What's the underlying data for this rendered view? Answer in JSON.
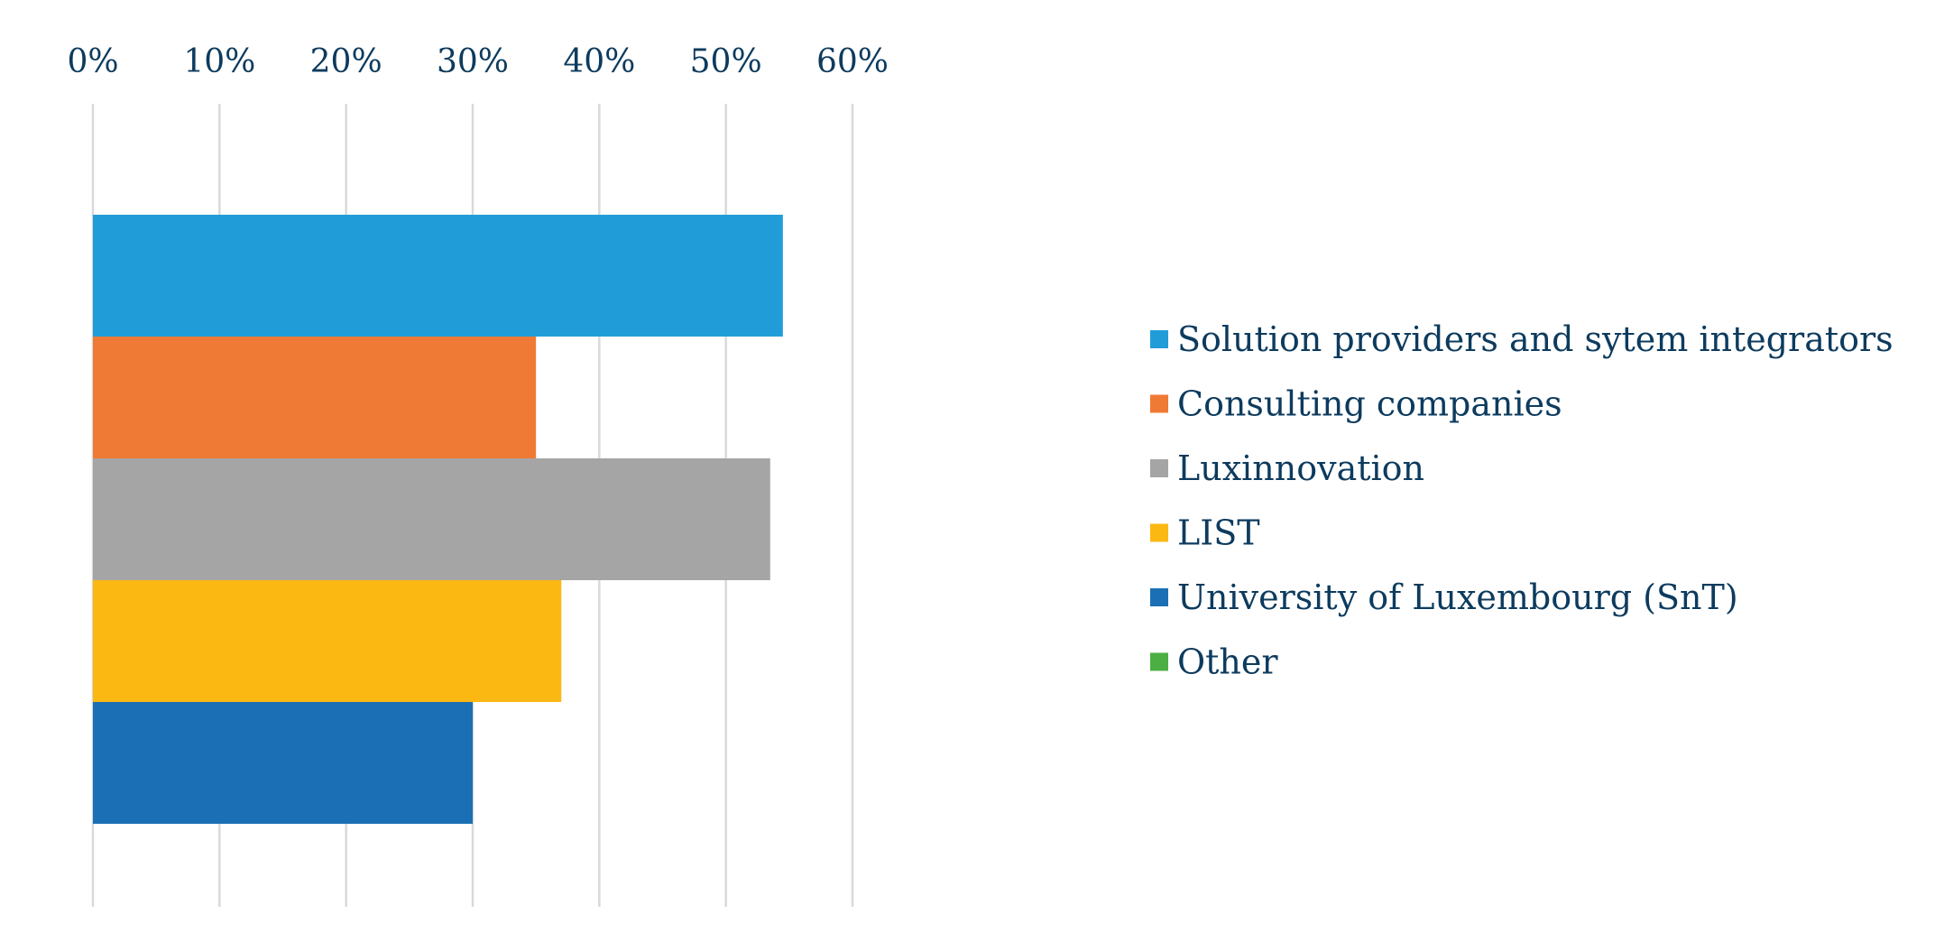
{
  "chart_data": {
    "type": "bar",
    "orientation": "horizontal",
    "categories": [
      "Solution providers and sytem integrators",
      "Consulting companies",
      "Luxinnovation",
      "LIST",
      "University of Luxembourg (SnT)",
      "Other"
    ],
    "values": [
      54.5,
      35,
      53.5,
      37,
      30,
      0
    ],
    "colors": [
      "#209dd8",
      "#ef7a35",
      "#a5a5a5",
      "#fbb812",
      "#1b70b5",
      "#4caf43"
    ],
    "xlim": [
      0,
      60
    ],
    "xticks": [
      0,
      10,
      20,
      30,
      40,
      50,
      60
    ],
    "xtick_labels": [
      "0%",
      "10%",
      "20%",
      "30%",
      "40%",
      "50%",
      "60%"
    ],
    "xaxis_position": "top",
    "grid": true,
    "legend_position": "right",
    "title": "",
    "xlabel": "",
    "ylabel": ""
  }
}
